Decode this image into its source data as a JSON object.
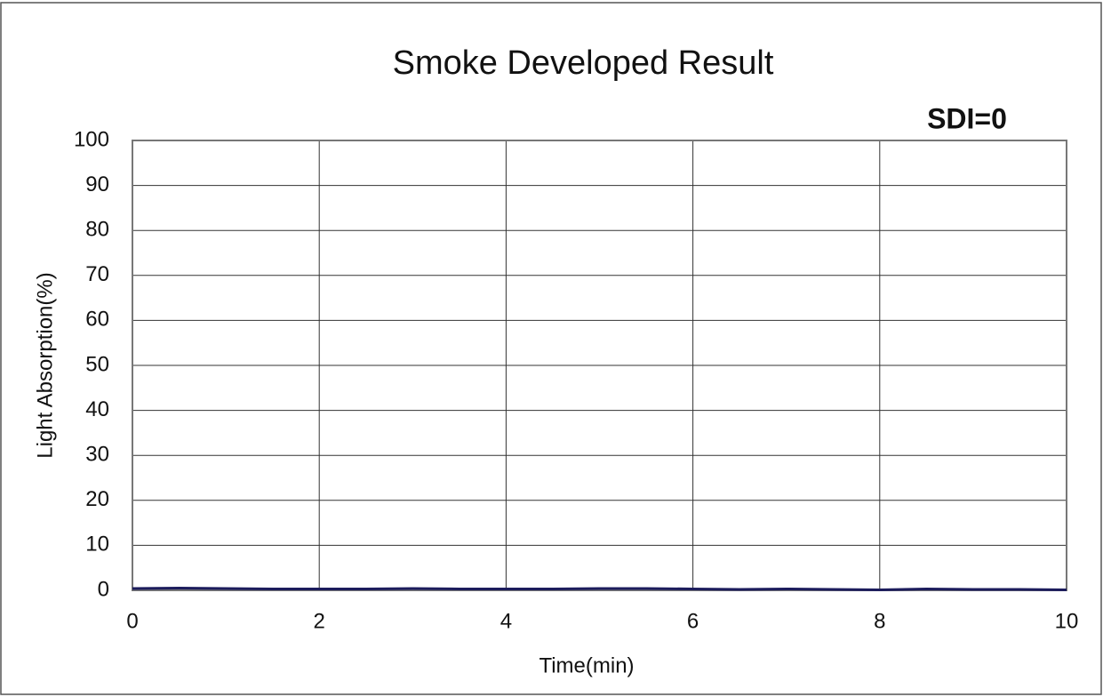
{
  "chart_data": {
    "type": "line",
    "title": "Smoke Developed Result",
    "annotation": "SDI=0",
    "xlabel": "Time(min)",
    "ylabel": "Light Absorption(%)",
    "x": [
      0,
      0.5,
      1,
      1.5,
      2,
      2.5,
      3,
      3.5,
      4,
      4.5,
      5,
      5.5,
      6,
      6.5,
      7,
      7.5,
      8,
      8.5,
      9,
      9.5,
      10
    ],
    "series": [
      {
        "name": "Light Absorption",
        "color": "#1c1c5c",
        "values": [
          0.4,
          0.5,
          0.4,
          0.3,
          0.3,
          0.3,
          0.4,
          0.3,
          0.3,
          0.3,
          0.4,
          0.4,
          0.3,
          0.2,
          0.3,
          0.2,
          0.1,
          0.3,
          0.2,
          0.2,
          0.1
        ]
      }
    ],
    "xlim": [
      0,
      10
    ],
    "xticks": [
      0,
      2,
      4,
      6,
      8,
      10
    ],
    "ylim": [
      0,
      100
    ],
    "yticks": [
      0,
      10,
      20,
      30,
      40,
      50,
      60,
      70,
      80,
      90,
      100
    ],
    "grid": true
  }
}
